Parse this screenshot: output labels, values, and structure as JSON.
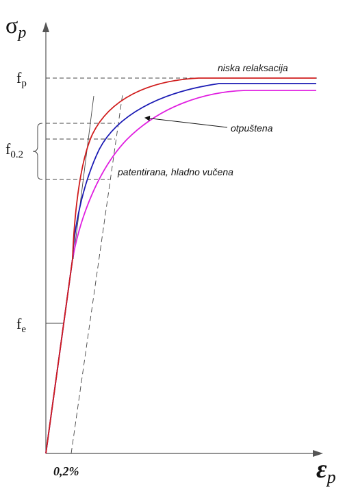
{
  "chart_data": {
    "type": "line",
    "title": "",
    "y_axis": {
      "symbol": "σ",
      "subscript": "p"
    },
    "x_axis": {
      "symbol": "ε",
      "subscript": "p"
    },
    "y_ticks": [
      {
        "key": "fp",
        "base": "f",
        "sub": "p"
      },
      {
        "key": "f02",
        "base": "f",
        "sub": "0.2"
      },
      {
        "key": "fe",
        "base": "f",
        "sub": "e"
      }
    ],
    "x_tick_label": "0,2%",
    "series": [
      {
        "name": "niska relaksacija",
        "color": "#d01c1c"
      },
      {
        "name": "otpuštena",
        "color": "#1a1ab4"
      },
      {
        "name": "patentirana, hladno vučena",
        "color": "#e01ee0"
      }
    ],
    "colors": {
      "axis": "#555555",
      "guide": "#444444",
      "text": "#111111"
    }
  }
}
